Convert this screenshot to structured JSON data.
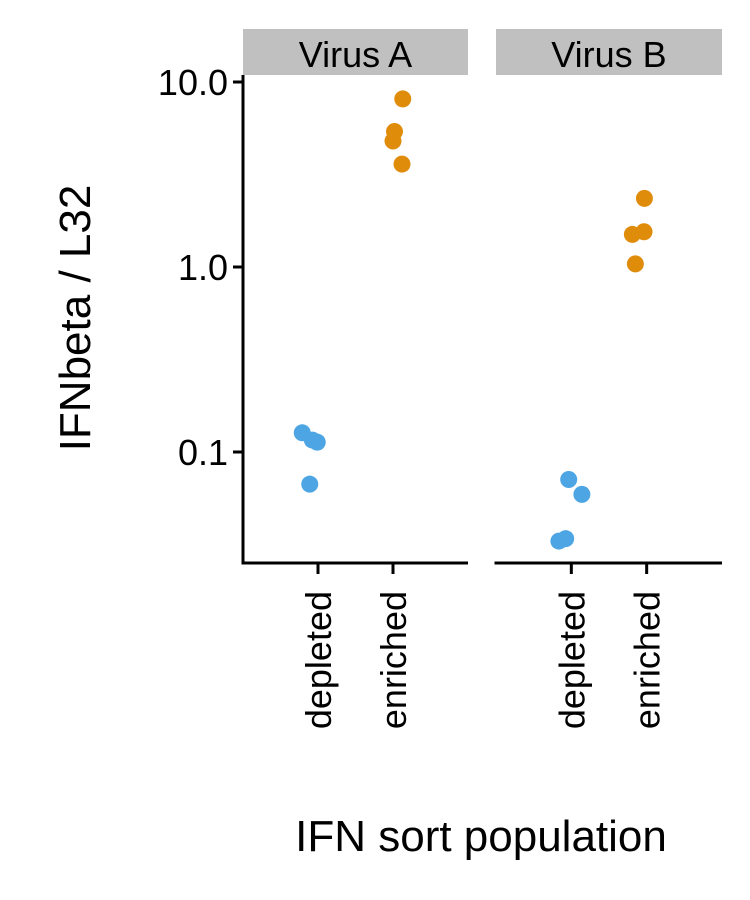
{
  "chart_data": {
    "type": "scatter",
    "ylabel": "IFNbeta / L32",
    "xlabel": "IFN sort population",
    "yscale": "log",
    "ylim": [
      0.025,
      12
    ],
    "yticks": [
      0.1,
      1.0,
      10.0
    ],
    "ytick_labels": [
      "0.1",
      "1.0",
      "10.0"
    ],
    "categories": [
      "depleted",
      "enriched"
    ],
    "colors": {
      "depleted": "#4da6e3",
      "enriched": "#e08c0b",
      "strip": "#c0c0c0"
    },
    "grid": false,
    "legend": "none",
    "panels": [
      {
        "title": "Virus A",
        "points": [
          {
            "x": "depleted",
            "y": 0.127,
            "jitter": -0.42
          },
          {
            "x": "depleted",
            "y": 0.116,
            "jitter": -0.15
          },
          {
            "x": "depleted",
            "y": 0.113,
            "jitter": -0.02
          },
          {
            "x": "depleted",
            "y": 0.067,
            "jitter": -0.22
          },
          {
            "x": "enriched",
            "y": 8.1,
            "jitter": 0.26
          },
          {
            "x": "enriched",
            "y": 5.4,
            "jitter": 0.04
          },
          {
            "x": "enriched",
            "y": 4.8,
            "jitter": 0.0
          },
          {
            "x": "enriched",
            "y": 3.6,
            "jitter": 0.24
          }
        ]
      },
      {
        "title": "Virus B",
        "points": [
          {
            "x": "depleted",
            "y": 0.071,
            "jitter": -0.07
          },
          {
            "x": "depleted",
            "y": 0.059,
            "jitter": 0.28
          },
          {
            "x": "depleted",
            "y": 0.034,
            "jitter": -0.15
          },
          {
            "x": "depleted",
            "y": 0.033,
            "jitter": -0.33
          },
          {
            "x": "enriched",
            "y": 2.35,
            "jitter": -0.06
          },
          {
            "x": "enriched",
            "y": 1.55,
            "jitter": -0.07
          },
          {
            "x": "enriched",
            "y": 1.5,
            "jitter": -0.38
          },
          {
            "x": "enriched",
            "y": 1.04,
            "jitter": -0.3
          }
        ]
      }
    ]
  }
}
